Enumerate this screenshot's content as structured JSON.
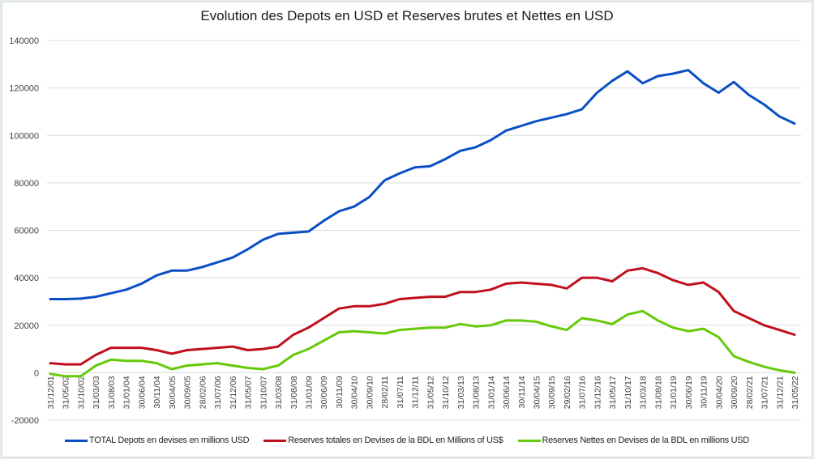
{
  "chart_data": {
    "type": "line",
    "title": "Evolution des Depots en USD et Reserves brutes et Nettes en USD",
    "xlabel": "",
    "ylabel": "",
    "ylim": [
      -20000,
      140000
    ],
    "yticks": [
      -20000,
      0,
      20000,
      40000,
      60000,
      80000,
      100000,
      120000,
      140000
    ],
    "ytick_labels": [
      "-20000",
      "0",
      "20000",
      "40000",
      "60000",
      "80000",
      "100000",
      "120000",
      "140000"
    ],
    "grid": true,
    "legend_position": "bottom",
    "categories": [
      "31/12/01",
      "31/05/02",
      "31/10/02",
      "31/03/03",
      "31/08/03",
      "31/01/04",
      "30/06/04",
      "30/11/04",
      "30/04/05",
      "30/09/05",
      "28/02/06",
      "31/07/06",
      "31/12/06",
      "31/05/07",
      "31/10/07",
      "31/03/08",
      "31/08/08",
      "31/01/09",
      "30/06/09",
      "30/11/09",
      "30/04/10",
      "30/09/10",
      "28/02/11",
      "31/07/11",
      "31/12/11",
      "31/05/12",
      "31/10/12",
      "31/03/13",
      "31/08/13",
      "31/01/14",
      "30/06/14",
      "30/11/14",
      "30/04/15",
      "30/09/15",
      "29/02/16",
      "31/07/16",
      "31/12/16",
      "31/05/17",
      "31/10/17",
      "31/03/18",
      "31/08/18",
      "31/01/19",
      "30/06/19",
      "30/11/19",
      "30/04/20",
      "30/09/20",
      "28/02/21",
      "31/07/21",
      "31/12/21",
      "31/05/22"
    ],
    "series": [
      {
        "name": "TOTAL Depots en devises en millions USD",
        "color": "#0a4fc4",
        "values": [
          31000,
          31000,
          31200,
          32000,
          33500,
          35000,
          37500,
          41000,
          43000,
          43000,
          44500,
          46500,
          48500,
          52000,
          56000,
          58500,
          59000,
          59500,
          64000,
          68000,
          70000,
          74000,
          81000,
          84000,
          86500,
          87000,
          90000,
          93500,
          95000,
          98000,
          102000,
          104000,
          106000,
          107500,
          109000,
          111000,
          118000,
          123000,
          127000,
          122000,
          125000,
          126000,
          127500,
          122000,
          118000,
          122500,
          117000,
          113000,
          108000,
          105000
        ]
      },
      {
        "name": "Reserves totales en Devises de la BDL en Millions of US$",
        "color": "#c0101e",
        "values": [
          4000,
          3500,
          3500,
          7500,
          10500,
          10500,
          10500,
          9500,
          8000,
          9500,
          10000,
          10500,
          11000,
          9500,
          10000,
          11000,
          16000,
          19000,
          23000,
          27000,
          28000,
          28000,
          29000,
          31000,
          31500,
          32000,
          32000,
          34000,
          34000,
          35000,
          37500,
          38000,
          37500,
          37000,
          35500,
          40000,
          40000,
          38500,
          43000,
          44000,
          42000,
          39000,
          37000,
          38000,
          34000,
          26000,
          23000,
          20000,
          18000,
          16000
        ]
      },
      {
        "name": "Reserves Nettes en Devises de la BDL en millions USD",
        "color": "#66c90a",
        "values": [
          -500,
          -1500,
          -1500,
          3000,
          5500,
          5000,
          5000,
          4000,
          1500,
          3000,
          3500,
          4000,
          3000,
          2000,
          1500,
          3000,
          7500,
          10000,
          13500,
          17000,
          17500,
          17000,
          16500,
          18000,
          18500,
          19000,
          19000,
          20500,
          19500,
          20000,
          22000,
          22000,
          21500,
          19500,
          18000,
          23000,
          22000,
          20500,
          24500,
          26000,
          22000,
          19000,
          17500,
          18500,
          15000,
          7000,
          4500,
          2500,
          1000,
          0
        ]
      }
    ]
  }
}
